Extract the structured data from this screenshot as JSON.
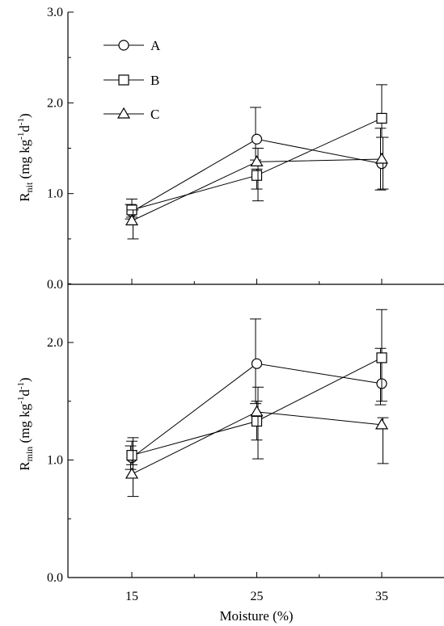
{
  "chart_data": [
    {
      "type": "line",
      "panel": "top",
      "ylabel_main": "R",
      "ylabel_sub": "nit",
      "ylabel_unit": " (mg kg",
      "ylabel_sup1": "-1",
      "ylabel_mid": "d",
      "ylabel_sup2": "-1",
      "ylabel_end": ")",
      "ylim": [
        0,
        3.0
      ],
      "yticks": [
        0.0,
        1.0,
        2.0,
        3.0
      ],
      "ytick_labels": [
        "0.0",
        "1.0",
        "2.0",
        "3.0"
      ],
      "x": [
        15,
        25,
        35
      ],
      "xlim": [
        10,
        40
      ],
      "legend_position": "top-left",
      "series": [
        {
          "name": "A",
          "marker": "circle",
          "values": [
            0.8,
            1.6,
            1.33
          ],
          "err_low": [
            0.72,
            1.37,
            1.04
          ],
          "err_high": [
            0.88,
            1.95,
            1.72
          ]
        },
        {
          "name": "B",
          "marker": "square",
          "values": [
            0.82,
            1.2,
            1.83
          ],
          "err_low": [
            0.74,
            1.05,
            1.62
          ],
          "err_high": [
            0.94,
            1.27,
            2.2
          ]
        },
        {
          "name": "C",
          "marker": "triangle",
          "values": [
            0.7,
            1.35,
            1.38
          ],
          "err_low": [
            0.5,
            0.92,
            1.05
          ],
          "err_high": [
            0.82,
            1.5,
            1.62
          ]
        }
      ]
    },
    {
      "type": "line",
      "panel": "bottom",
      "ylabel_main": "R",
      "ylabel_sub": "min",
      "ylabel_unit": " (mg kg",
      "ylabel_sup1": "-1",
      "ylabel_mid": "d",
      "ylabel_sup2": "-1",
      "ylabel_end": ")",
      "ylim": [
        0,
        2.5
      ],
      "yticks": [
        0.0,
        1.0,
        2.0
      ],
      "ytick_labels": [
        "0.0",
        "1.0",
        "2.0"
      ],
      "x": [
        15,
        25,
        35
      ],
      "xtick_labels": [
        "15",
        "25",
        "35"
      ],
      "xlabel": "Moisture (%)",
      "xlim": [
        10,
        40
      ],
      "series": [
        {
          "name": "A",
          "marker": "circle",
          "values": [
            1.02,
            1.82,
            1.65
          ],
          "err_low": [
            0.92,
            1.48,
            1.47
          ],
          "err_high": [
            1.12,
            2.2,
            1.95
          ]
        },
        {
          "name": "B",
          "marker": "square",
          "values": [
            1.04,
            1.33,
            1.87
          ],
          "err_low": [
            0.96,
            1.17,
            1.5
          ],
          "err_high": [
            1.16,
            1.5,
            2.28
          ]
        },
        {
          "name": "C",
          "marker": "triangle",
          "values": [
            0.88,
            1.41,
            1.3
          ],
          "err_low": [
            0.69,
            1.01,
            0.97
          ],
          "err_high": [
            1.19,
            1.62,
            1.36
          ]
        }
      ]
    }
  ]
}
